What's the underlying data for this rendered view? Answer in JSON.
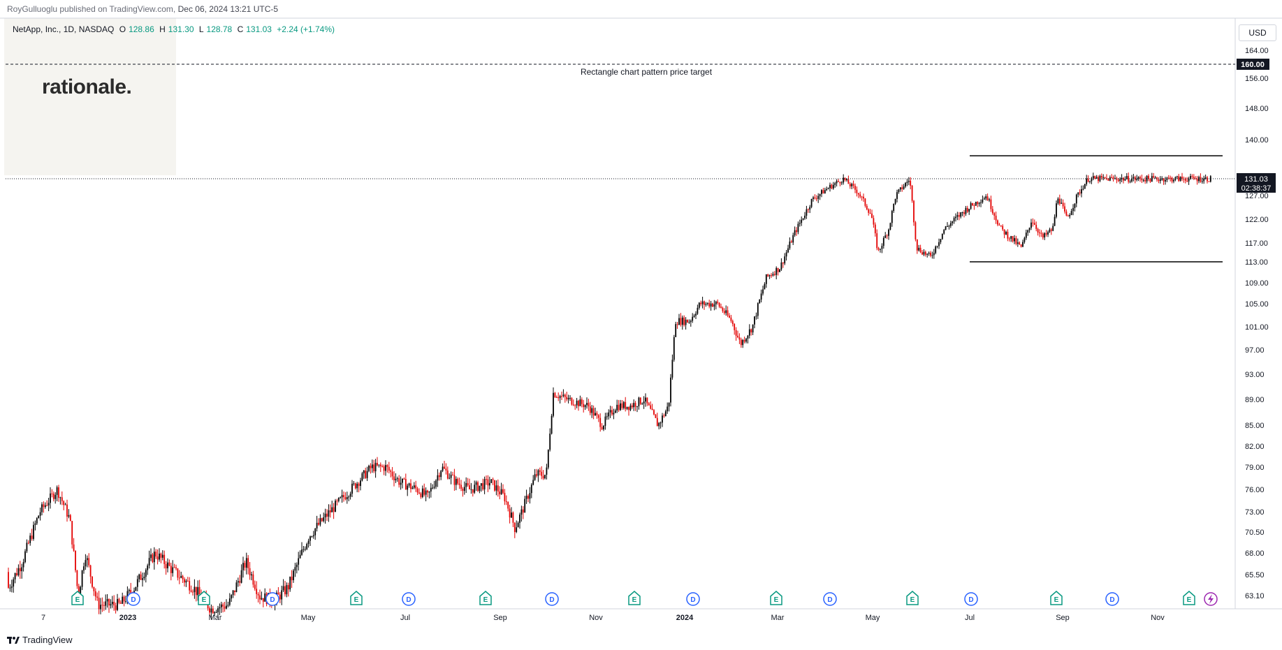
{
  "header": {
    "publisher": "RoyGulluoglu published on TradingView.com,",
    "datetime": "Dec 06, 2024 13:21 UTC-5"
  },
  "legend": {
    "symbol": "NetApp, Inc., 1D, NASDAQ",
    "open_label": "O",
    "open": "128.86",
    "high_label": "H",
    "high": "131.30",
    "low_label": "L",
    "low": "128.78",
    "close_label": "C",
    "close": "131.03",
    "change": "+2.24 (+1.74%)"
  },
  "watermark": {
    "text": "rationale."
  },
  "currency": "USD",
  "footer": {
    "brand": "TradingView"
  },
  "colors": {
    "up": "#089981",
    "down": "#f23645",
    "candle_up_body": "#000000",
    "candle_down_body": "#e30000",
    "axis_bg": "#ffffff",
    "grid": "#e0e3eb"
  },
  "chart_data": {
    "type": "candlestick",
    "ylim": [
      61.5,
      167
    ],
    "y_ticks": [
      "164.00",
      "156.00",
      "148.00",
      "140.00",
      "127.00",
      "122.00",
      "117.00",
      "113.00",
      "109.00",
      "105.00",
      "101.00",
      "97.00",
      "93.00",
      "89.00",
      "85.00",
      "82.00",
      "79.00",
      "76.00",
      "73.00",
      "70.50",
      "68.00",
      "65.50",
      "63.10"
    ],
    "x_labels": [
      "7",
      "2023",
      "Mar",
      "May",
      "Jul",
      "Sep",
      "Nov",
      "2024",
      "Mar",
      "May",
      "Jul",
      "Sep",
      "Nov"
    ],
    "price_line": {
      "value": 131.03,
      "label": "131.03",
      "countdown": "02:38:37"
    },
    "target": {
      "value": 160.0,
      "label": "160.00",
      "text": "Rectangle chart pattern price target"
    },
    "rectangle": {
      "top": 136.3,
      "bottom": 113.0
    },
    "event_markers": [
      "E",
      "D",
      "E",
      "D",
      "E",
      "D",
      "E",
      "D",
      "E",
      "D",
      "E",
      "D",
      "E",
      "D",
      "E",
      "D",
      "E"
    ],
    "price_path": [
      [
        0,
        64
      ],
      [
        20,
        67
      ],
      [
        45,
        73
      ],
      [
        70,
        76
      ],
      [
        88,
        72
      ],
      [
        100,
        63
      ],
      [
        110,
        68
      ],
      [
        128,
        62
      ],
      [
        160,
        62
      ],
      [
        180,
        64
      ],
      [
        210,
        68
      ],
      [
        235,
        66
      ],
      [
        265,
        64
      ],
      [
        290,
        61.5
      ],
      [
        315,
        62
      ],
      [
        340,
        67
      ],
      [
        360,
        63
      ],
      [
        380,
        62.5
      ],
      [
        400,
        64
      ],
      [
        430,
        70
      ],
      [
        470,
        74
      ],
      [
        500,
        77
      ],
      [
        520,
        79
      ],
      [
        540,
        79
      ],
      [
        560,
        77
      ],
      [
        585,
        76
      ],
      [
        600,
        75
      ],
      [
        620,
        79
      ],
      [
        640,
        77
      ],
      [
        660,
        76
      ],
      [
        690,
        77
      ],
      [
        710,
        75
      ],
      [
        725,
        71
      ],
      [
        735,
        73
      ],
      [
        755,
        78
      ],
      [
        770,
        78
      ],
      [
        780,
        90
      ],
      [
        800,
        89
      ],
      [
        830,
        88
      ],
      [
        850,
        85
      ],
      [
        870,
        88
      ],
      [
        890,
        88
      ],
      [
        910,
        89
      ],
      [
        930,
        85
      ],
      [
        945,
        88
      ],
      [
        955,
        102
      ],
      [
        975,
        102
      ],
      [
        990,
        105
      ],
      [
        1015,
        105
      ],
      [
        1035,
        102
      ],
      [
        1048,
        98
      ],
      [
        1065,
        101
      ],
      [
        1085,
        110
      ],
      [
        1105,
        112
      ],
      [
        1125,
        119
      ],
      [
        1150,
        126
      ],
      [
        1175,
        129
      ],
      [
        1195,
        131
      ],
      [
        1215,
        128
      ],
      [
        1235,
        123
      ],
      [
        1245,
        115
      ],
      [
        1260,
        120
      ],
      [
        1270,
        127
      ],
      [
        1290,
        131
      ],
      [
        1300,
        116
      ],
      [
        1320,
        114
      ],
      [
        1340,
        120
      ],
      [
        1370,
        124
      ],
      [
        1400,
        127
      ],
      [
        1420,
        120
      ],
      [
        1435,
        118
      ],
      [
        1450,
        116
      ],
      [
        1465,
        122
      ],
      [
        1480,
        118
      ],
      [
        1495,
        120
      ],
      [
        1502,
        127
      ],
      [
        1515,
        122
      ],
      [
        1530,
        127
      ],
      [
        1545,
        131
      ]
    ]
  }
}
